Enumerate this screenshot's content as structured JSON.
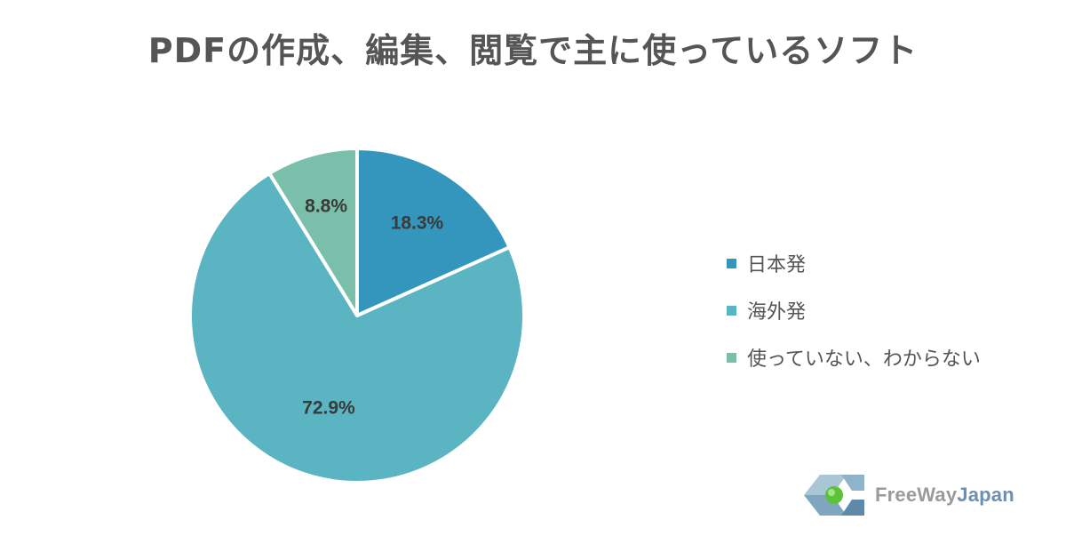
{
  "chart_data": {
    "type": "pie",
    "title": "PDFの作成、編集、閲覧で主に使っているソフト",
    "slices": [
      {
        "name": "日本発",
        "value": 18.3,
        "label": "18.3%",
        "color": "#3596bd"
      },
      {
        "name": "海外発",
        "value": 72.9,
        "label": "72.9%",
        "color": "#5ab4c2"
      },
      {
        "name": "使っていない、わからない",
        "value": 8.8,
        "label": "8.8%",
        "color": "#79bfa9"
      }
    ],
    "legend_position": "right"
  },
  "logo": {
    "text_part1": "FreeWay",
    "text_part2": "Japan",
    "color_part1": "#9a9a9a",
    "color_part2": "#6c8fb3"
  }
}
